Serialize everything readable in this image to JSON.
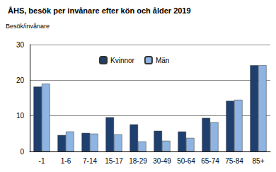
{
  "chart_data": {
    "type": "bar",
    "title": "ÅHS, besök per invånare efter kön och ålder 2019",
    "ylabel": "Besök/invånare",
    "categories": [
      "-1",
      "1-6",
      "7-14",
      "15-17",
      "18-29",
      "30-49",
      "50-64",
      "65-74",
      "75-84",
      "85+"
    ],
    "series": [
      {
        "name": "Kvinnor",
        "color": "#1f3f6e",
        "values": [
          18.2,
          4.6,
          5.2,
          9.6,
          7.6,
          5.8,
          5.6,
          9.4,
          14.2,
          24.2
        ]
      },
      {
        "name": "Män",
        "color": "#8eb4e3",
        "values": [
          19.0,
          5.6,
          5.0,
          4.8,
          2.8,
          3.0,
          3.8,
          8.2,
          14.5,
          24.2
        ]
      }
    ],
    "ylim": [
      0,
      30
    ],
    "yticks": [
      0,
      10,
      20,
      30
    ],
    "grid": true,
    "legend": "top"
  }
}
